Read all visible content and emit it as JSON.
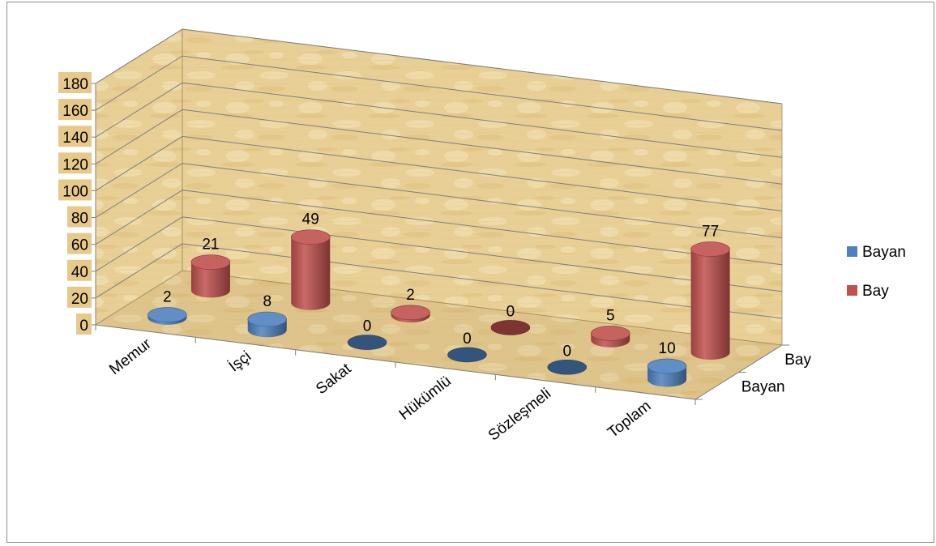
{
  "chart_data": {
    "type": "bar",
    "subtype": "3d-cylinder",
    "categories": [
      "Memur",
      "İşçi",
      "Sakat",
      "Hükümlü",
      "Sözleşmeli",
      "Toplam"
    ],
    "series": [
      {
        "name": "Bayan",
        "values": [
          2,
          8,
          0,
          0,
          0,
          10
        ],
        "color": "#4f81bd"
      },
      {
        "name": "Bay",
        "values": [
          21,
          49,
          2,
          0,
          5,
          77
        ],
        "color": "#c0504d"
      }
    ],
    "y_ticks": [
      "0",
      "20",
      "40",
      "60",
      "80",
      "100",
      "120",
      "140",
      "160",
      "180"
    ],
    "ylim": [
      0,
      180
    ],
    "depth_labels": [
      "Bay",
      "Bayan"
    ],
    "legend": {
      "position": "right",
      "entries": [
        "Bayan",
        "Bay"
      ]
    },
    "grid": true,
    "wall_color": "#e8cf95"
  }
}
